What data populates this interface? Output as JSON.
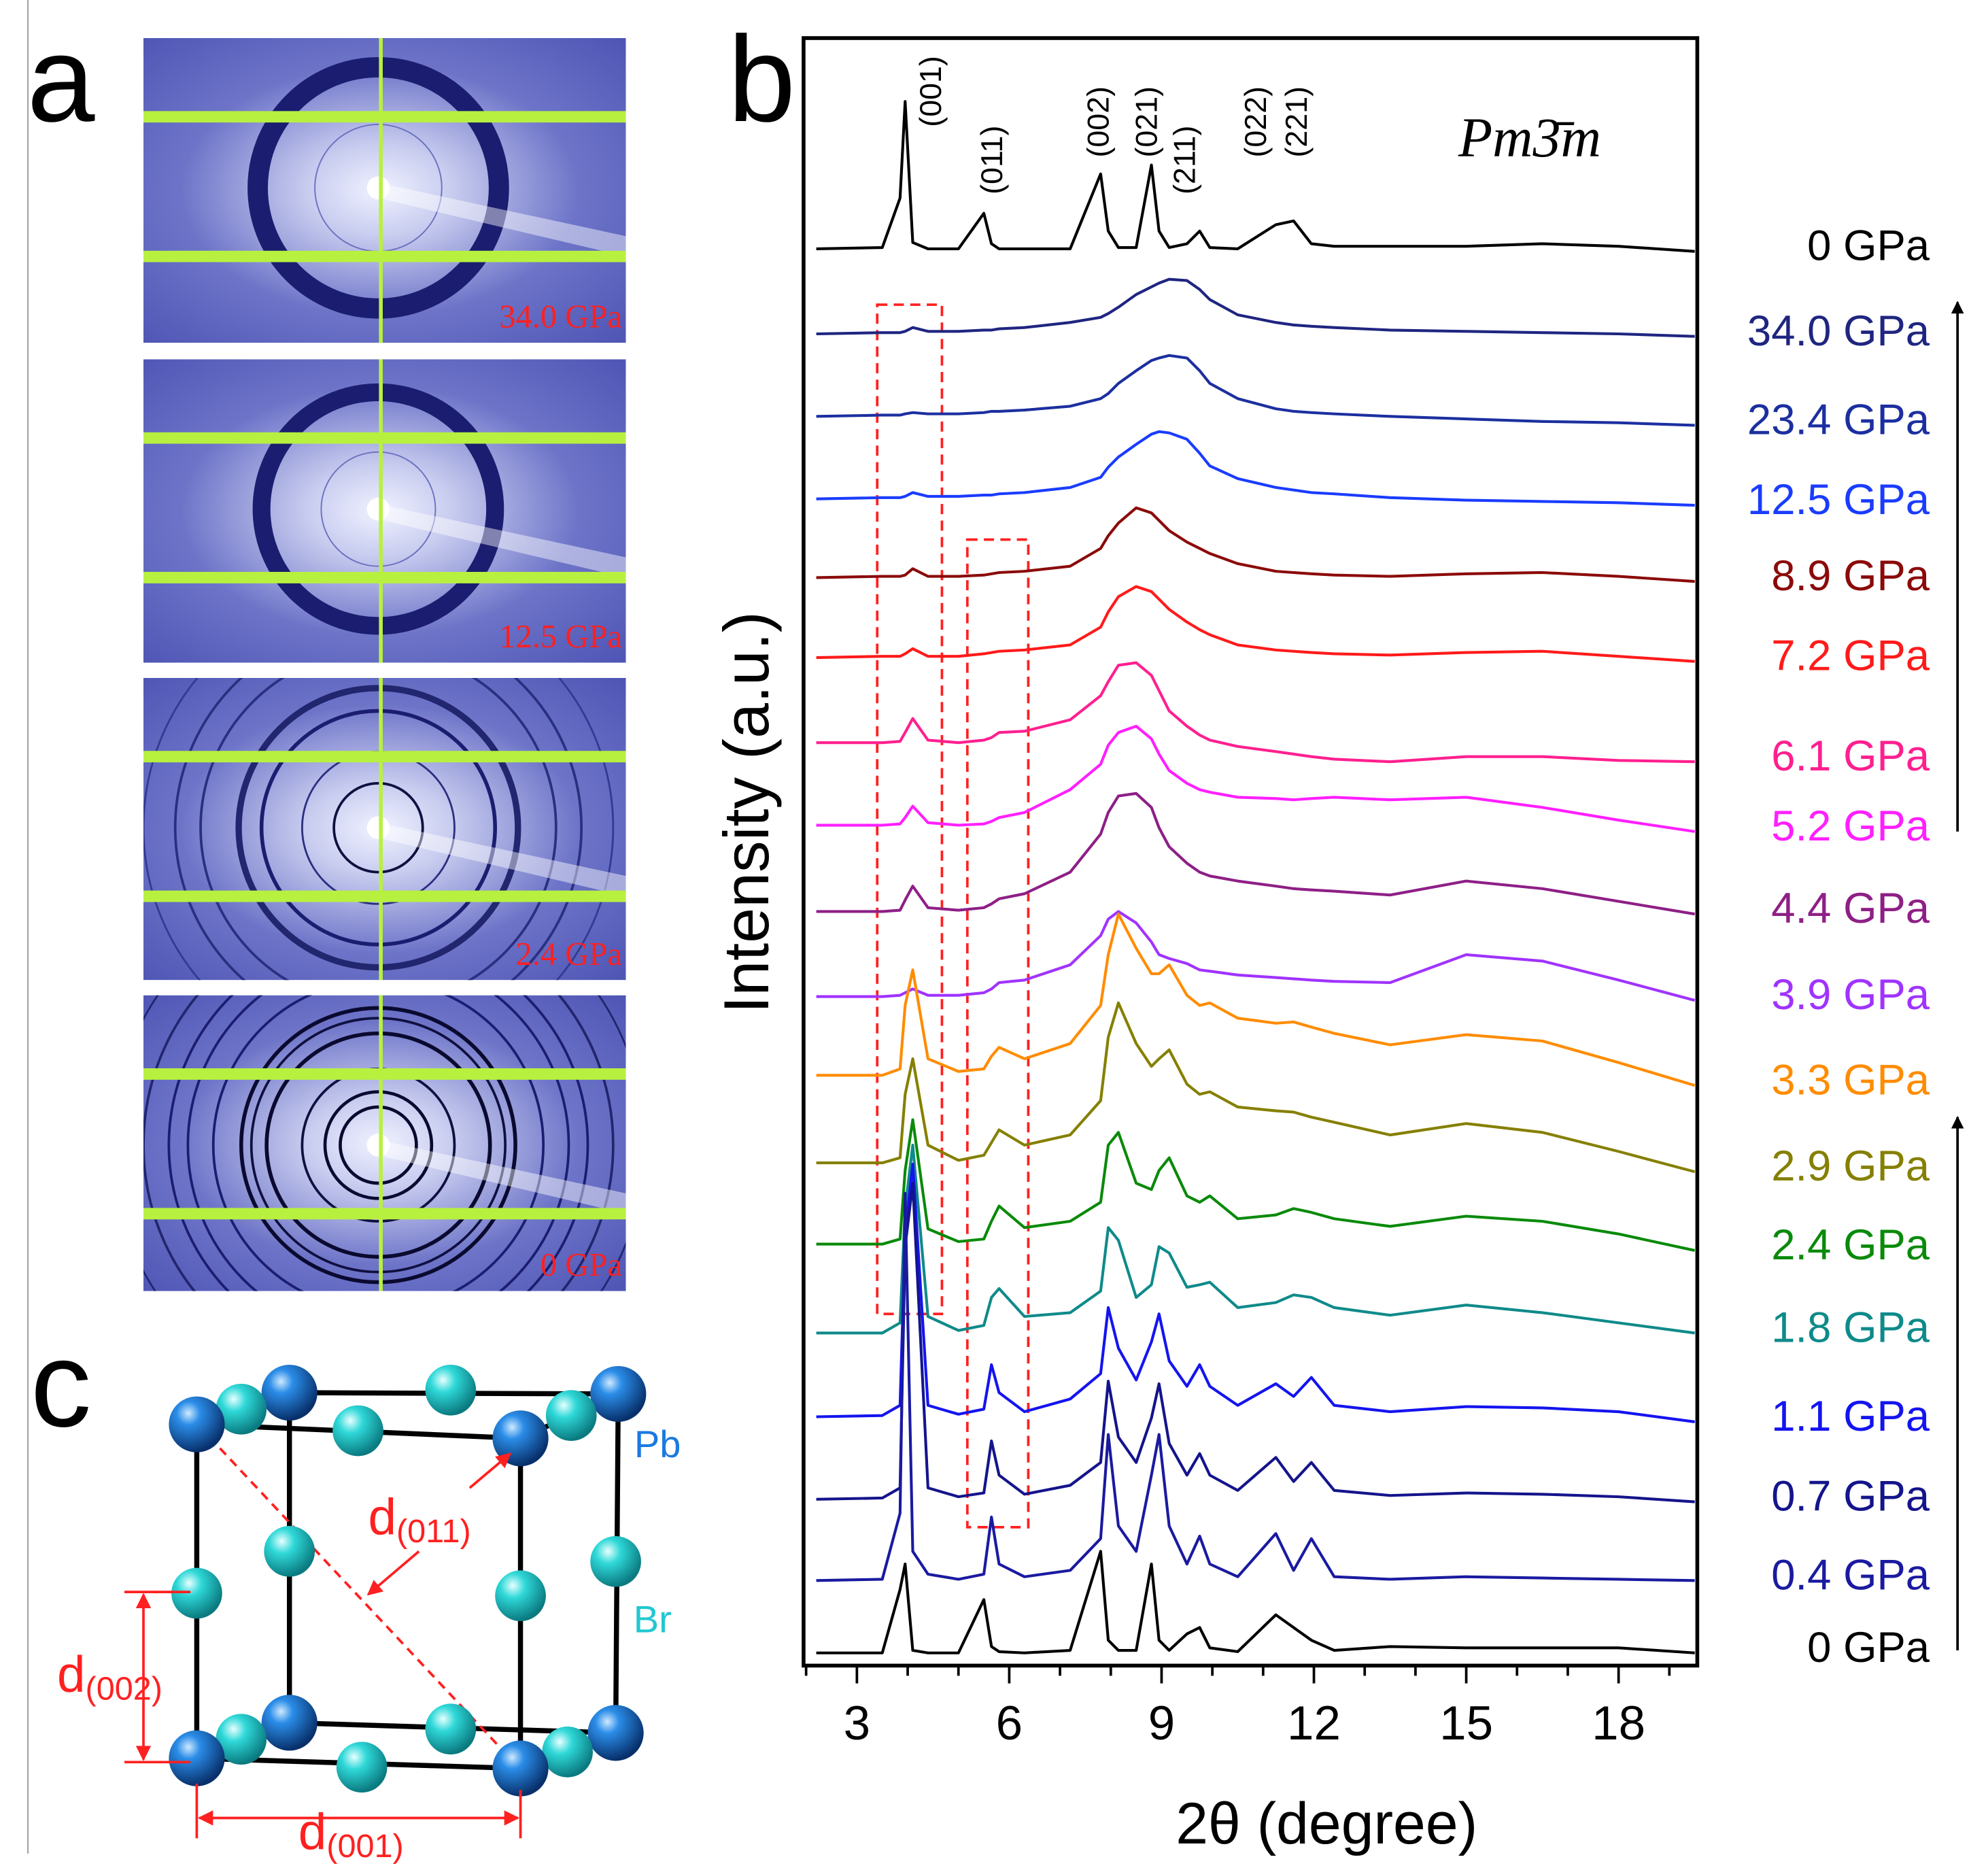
{
  "panels": {
    "a": {
      "letter": "a",
      "images": [
        {
          "label": "34.0 GPa"
        },
        {
          "label": "12.5 GPa"
        },
        {
          "label": "2.4 GPa"
        },
        {
          "label": "0 GPa"
        }
      ]
    },
    "c": {
      "letter": "c",
      "atoms": {
        "pb": "Pb",
        "br": "Br"
      },
      "distances": [
        {
          "main": "d",
          "sub": "(011)"
        },
        {
          "main": "d",
          "sub": "(002)"
        },
        {
          "main": "d",
          "sub": "(001)"
        }
      ]
    }
  },
  "chart_data": {
    "type": "line",
    "panel": "b",
    "title": "Pm3̄m",
    "x_label": "2θ (degree)",
    "y_label": "Intensity (a.u.)",
    "xlim": [
      1.95,
      19.55
    ],
    "ylim": [
      0,
      1282
    ],
    "xticks": [
      3,
      6,
      9,
      12,
      15,
      18
    ],
    "xminorticks": [
      2,
      4,
      5,
      7,
      8,
      10,
      11,
      13,
      14,
      16,
      17,
      19
    ],
    "peak_labels": [
      {
        "text": "(001)",
        "x": 4.5
      },
      {
        "text": "(011)",
        "x": 5.7
      },
      {
        "text": "(002)",
        "x": 7.8
      },
      {
        "text": "(021)",
        "x": 8.75
      },
      {
        "text": "(211)",
        "x": 9.5
      },
      {
        "text": "(022)",
        "x": 10.9
      },
      {
        "text": "(221)",
        "x": 11.7
      }
    ],
    "x": [
      2.2,
      3.5,
      3.85,
      3.95,
      4.1,
      4.4,
      5,
      5.5,
      5.65,
      5.8,
      6.3,
      7.2,
      7.8,
      7.95,
      8.15,
      8.5,
      8.8,
      8.95,
      9.15,
      9.5,
      9.75,
      9.95,
      10.5,
      11.25,
      11.6,
      11.95,
      12.4,
      13.5,
      15,
      16.5,
      18,
      19.5
    ],
    "series": [
      {
        "name": "0 GPa",
        "color": "#000000",
        "values": [
          1116,
          1117,
          1156,
          1232,
          1121,
          1116,
          1116,
          1144,
          1120,
          1116,
          1116,
          1116,
          1175,
          1130,
          1117,
          1117,
          1182,
          1130,
          1117,
          1120,
          1130,
          1117,
          1116,
          1135,
          1138,
          1120,
          1118,
          1118,
          1118,
          1120,
          1118,
          1114
        ]
      },
      {
        "name": "34.0 GPa",
        "color": "#1f2580",
        "values": [
          1049,
          1050,
          1050,
          1051,
          1054,
          1051,
          1051,
          1052,
          1052,
          1053,
          1054,
          1058,
          1062,
          1065,
          1070,
          1080,
          1086,
          1089,
          1092,
          1091,
          1084,
          1076,
          1064,
          1058,
          1056,
          1055,
          1054,
          1052,
          1051,
          1050,
          1049,
          1047
        ]
      },
      {
        "name": "23.4 GPa",
        "color": "#1c2fa0",
        "values": [
          984,
          985,
          985,
          986,
          987,
          986,
          986,
          987,
          988,
          988,
          989,
          992,
          998,
          1002,
          1010,
          1020,
          1028,
          1030,
          1032,
          1030,
          1020,
          1010,
          998,
          990,
          988,
          987,
          986,
          984,
          982,
          980,
          979,
          977
        ]
      },
      {
        "name": "12.5 GPa",
        "color": "#1a3cff",
        "values": [
          919,
          920,
          920,
          921,
          924,
          921,
          921,
          922,
          922,
          923,
          924,
          928,
          936,
          944,
          952,
          962,
          970,
          972,
          971,
          966,
          955,
          945,
          935,
          928,
          926,
          924,
          923,
          920,
          918,
          917,
          916,
          914
        ]
      },
      {
        "name": "8.9 GPa",
        "color": "#8b0a0a",
        "values": [
          857,
          858,
          858,
          859,
          864,
          858,
          858,
          859,
          860,
          861,
          862,
          866,
          880,
          890,
          900,
          912,
          908,
          902,
          894,
          885,
          880,
          876,
          868,
          862,
          861,
          860,
          859,
          858,
          860,
          861,
          858,
          854
        ]
      },
      {
        "name": "7.2 GPa",
        "color": "#ff1a1a",
        "values": [
          794,
          795,
          795,
          797,
          801,
          795,
          795,
          797,
          798,
          799,
          800,
          804,
          818,
          830,
          842,
          850,
          846,
          840,
          832,
          822,
          816,
          812,
          804,
          800,
          799,
          798,
          797,
          796,
          798,
          799,
          795,
          791
        ]
      },
      {
        "name": "6.1 GPa",
        "color": "#ff1f8f",
        "values": [
          727,
          727,
          728,
          735,
          746,
          729,
          727,
          729,
          731,
          735,
          736,
          745,
          764,
          775,
          788,
          790,
          780,
          768,
          752,
          740,
          733,
          729,
          724,
          720,
          718,
          716,
          714,
          712,
          716,
          716,
          713,
          712
        ]
      },
      {
        "name": "5.2 GPa",
        "color": "#ff1fff",
        "values": [
          662,
          662,
          663,
          668,
          677,
          664,
          662,
          663,
          665,
          668,
          672,
          690,
          710,
          725,
          735,
          740,
          730,
          718,
          705,
          695,
          690,
          688,
          684,
          683,
          682,
          683,
          684,
          682,
          684,
          676,
          666,
          657
        ]
      },
      {
        "name": "4.4 GPa",
        "color": "#8e1f86",
        "values": [
          594,
          594,
          595,
          603,
          614,
          597,
          595,
          597,
          600,
          604,
          608,
          625,
          655,
          672,
          685,
          687,
          676,
          660,
          645,
          632,
          625,
          622,
          618,
          614,
          612,
          611,
          610,
          607,
          618,
          612,
          602,
          592
        ]
      },
      {
        "name": "3.9 GPa",
        "color": "#a033ff",
        "values": [
          527,
          527,
          528,
          530,
          533,
          528,
          528,
          530,
          533,
          538,
          540,
          552,
          575,
          588,
          594,
          585,
          570,
          560,
          557,
          553,
          548,
          547,
          544,
          542,
          541,
          540,
          539,
          538,
          560,
          555,
          540,
          524
        ]
      },
      {
        "name": "3.3 GPa",
        "color": "#ff8c00",
        "values": [
          465,
          465,
          470,
          520,
          548,
          478,
          468,
          470,
          480,
          487,
          478,
          490,
          520,
          560,
          592,
          565,
          545,
          545,
          552,
          528,
          520,
          522,
          510,
          506,
          507,
          503,
          498,
          489,
          497,
          492,
          475,
          457
        ]
      },
      {
        "name": "2.9 GPa",
        "color": "#858000",
        "values": [
          396,
          396,
          400,
          450,
          478,
          410,
          398,
          402,
          412,
          422,
          410,
          418,
          445,
          495,
          522,
          490,
          472,
          478,
          485,
          458,
          450,
          452,
          440,
          437,
          436,
          432,
          428,
          418,
          427,
          420,
          405,
          389
        ]
      },
      {
        "name": "2.4 GPa",
        "color": "#0a8a0a",
        "values": [
          332,
          332,
          336,
          390,
          430,
          344,
          334,
          336,
          350,
          362,
          345,
          350,
          365,
          410,
          420,
          380,
          375,
          390,
          400,
          370,
          365,
          370,
          352,
          355,
          360,
          357,
          352,
          346,
          354,
          350,
          340,
          327
        ]
      },
      {
        "name": "1.8 GPa",
        "color": "#0f8a8a",
        "values": [
          262,
          262,
          270,
          360,
          410,
          275,
          264,
          268,
          290,
          297,
          275,
          278,
          295,
          345,
          335,
          290,
          300,
          330,
          325,
          298,
          300,
          302,
          282,
          286,
          292,
          290,
          282,
          276,
          284,
          278,
          270,
          262
        ]
      },
      {
        "name": "1.1 GPa",
        "color": "#1414f0",
        "values": [
          196,
          197,
          205,
          340,
          395,
          205,
          198,
          202,
          237,
          215,
          200,
          210,
          230,
          282,
          250,
          225,
          255,
          277,
          240,
          220,
          237,
          220,
          205,
          222,
          212,
          227,
          205,
          200,
          204,
          203,
          200,
          192
        ]
      },
      {
        "name": "0.7 GPa",
        "color": "#14148c",
        "values": [
          131,
          132,
          140,
          330,
          380,
          140,
          133,
          136,
          177,
          150,
          135,
          142,
          160,
          224,
          180,
          160,
          195,
          222,
          175,
          150,
          167,
          150,
          138,
          164,
          145,
          160,
          138,
          134,
          136,
          135,
          133,
          129
        ]
      },
      {
        "name": "0.4 GPa",
        "color": "#1a1aa0",
        "values": [
          67,
          68,
          120,
          372,
          90,
          72,
          68,
          72,
          117,
          80,
          70,
          75,
          100,
          182,
          110,
          90,
          150,
          182,
          110,
          80,
          102,
          80,
          70,
          104,
          75,
          100,
          70,
          68,
          70,
          69,
          68,
          67
        ]
      },
      {
        "name": "0 GPa",
        "color": "#000000",
        "values": [
          10,
          10,
          60,
          80,
          12,
          10,
          10,
          52,
          15,
          11,
          10,
          12,
          90,
          20,
          12,
          12,
          80,
          20,
          12,
          25,
          30,
          14,
          11,
          40,
          30,
          20,
          12,
          15,
          14,
          14,
          14,
          10
        ]
      }
    ]
  }
}
